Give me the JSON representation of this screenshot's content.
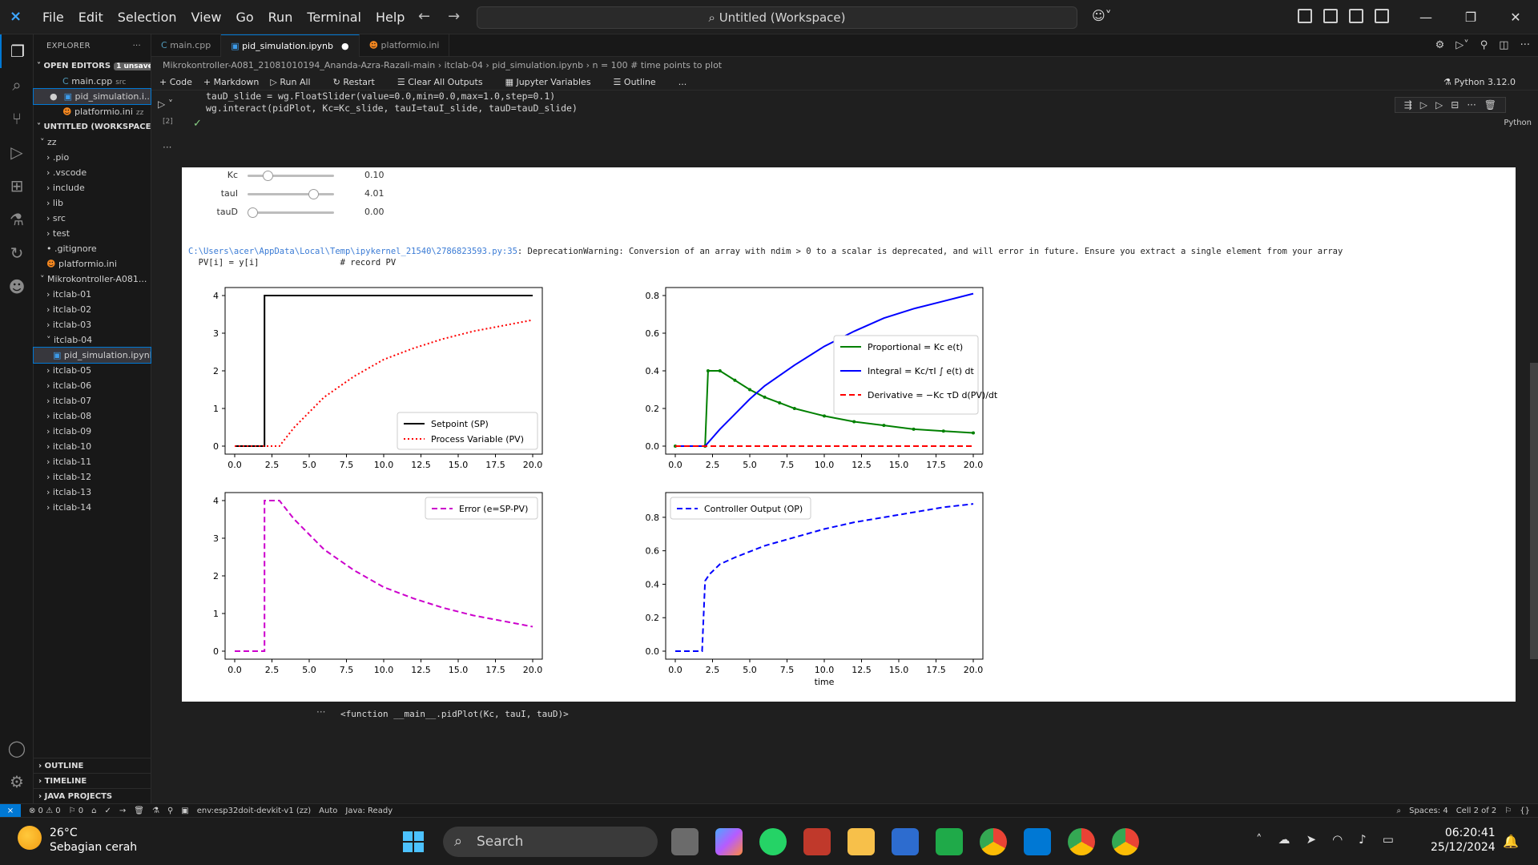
{
  "titlebar": {
    "menu": [
      "File",
      "Edit",
      "Selection",
      "View",
      "Go",
      "Run",
      "Terminal",
      "Help"
    ],
    "search": "Untitled (Workspace)"
  },
  "explorer": {
    "title": "EXPLORER",
    "open_editors": "OPEN EDITORS",
    "unsaved": "1 unsaved",
    "open_files": [
      {
        "name": "main.cpp",
        "hint": "src"
      },
      {
        "name": "pid_simulation.i..."
      },
      {
        "name": "platformio.ini",
        "hint": "zz"
      }
    ],
    "workspace": "UNTITLED (WORKSPACE)",
    "tree": [
      "zz",
      ".pio",
      ".vscode",
      "include",
      "lib",
      "src",
      "test",
      ".gitignore",
      "platformio.ini",
      "Mikrokontroller-A081...",
      "itclab-01",
      "itclab-02",
      "itclab-03",
      "itclab-04",
      "pid_simulation.ipynb",
      "itclab-05",
      "itclab-06",
      "itclab-07",
      "itclab-08",
      "itclab-09",
      "itclab-10",
      "itclab-11",
      "itclab-12",
      "itclab-13",
      "itclab-14"
    ],
    "bottom": [
      "OUTLINE",
      "TIMELINE",
      "JAVA PROJECTS"
    ]
  },
  "tabs": [
    "main.cpp",
    "pid_simulation.ipynb",
    "platformio.ini"
  ],
  "breadcrumb": "Mikrokontroller-A081_21081010194_Ananda-Azra-Razali-main  ›  itclab-04  ›  pid_simulation.ipynb  ›  n = 100 # time points to plot",
  "toolbar": {
    "items": [
      "+ Code",
      "+ Markdown",
      "Run All",
      "Restart",
      "Clear All Outputs",
      "Jupyter Variables",
      "Outline",
      "..."
    ],
    "kernel": "Python 3.12.0"
  },
  "cell": {
    "count": "[2]",
    "lang": "Python",
    "code": "tauD_slide = wg.FloatSlider(value=0.0,min=0.0,max=1.0,step=0.1)\nwg.interact(pidPlot, Kc=Kc_slide, tauI=tauI_slide, tauD=tauD_slide)"
  },
  "sliders": [
    {
      "label": "Kc",
      "value": "0.10",
      "frac": 0.2
    },
    {
      "label": "tauI",
      "value": "4.01",
      "frac": 0.8
    },
    {
      "label": "tauD",
      "value": "0.00",
      "frac": 0.0
    }
  ],
  "warning": {
    "path": "C:\\Users\\acer\\AppData\\Local\\Temp\\ipykernel_21540\\2786823593.py:35",
    "msg": ": DeprecationWarning: Conversion of an array with ndim > 0 to a scalar is deprecated, and will error in future. Ensure you extract a single element from your array",
    "line2": "  PV[i] = y[i]                # record PV"
  },
  "chart_data": [
    {
      "type": "line",
      "xlim": [
        0,
        20
      ],
      "ylim": [
        0,
        4
      ],
      "xticks": [
        "0.0",
        "2.5",
        "5.0",
        "7.5",
        "10.0",
        "12.5",
        "15.0",
        "17.5",
        "20.0"
      ],
      "yticks": [
        "0",
        "1",
        "2",
        "3",
        "4"
      ],
      "legend": "lower-right",
      "series": [
        {
          "name": "Setpoint (SP)",
          "color": "#000000",
          "style": "solid",
          "x": [
            0,
            2,
            2,
            20
          ],
          "y": [
            0,
            0,
            4,
            4
          ]
        },
        {
          "name": "Process Variable (PV)",
          "color": "#ff0000",
          "style": "dotted",
          "x": [
            0,
            3,
            4,
            6,
            8,
            10,
            12,
            14,
            16,
            18,
            20
          ],
          "y": [
            0,
            0,
            0.5,
            1.3,
            1.85,
            2.3,
            2.6,
            2.85,
            3.05,
            3.2,
            3.35
          ]
        }
      ]
    },
    {
      "type": "line",
      "xlim": [
        0,
        20
      ],
      "ylim": [
        0,
        0.8
      ],
      "xticks": [
        "0.0",
        "2.5",
        "5.0",
        "7.5",
        "10.0",
        "12.5",
        "15.0",
        "17.5",
        "20.0"
      ],
      "yticks": [
        "0.0",
        "0.2",
        "0.4",
        "0.6",
        "0.8"
      ],
      "legend": "center-right",
      "series": [
        {
          "name": "Proportional",
          "label": "Proportional = Kᴄ e(t)",
          "color": "#008000",
          "style": "dotline",
          "x": [
            0,
            2,
            2.2,
            3,
            4,
            5,
            6,
            7,
            8,
            10,
            12,
            14,
            16,
            18,
            20
          ],
          "y": [
            0,
            0,
            0.4,
            0.4,
            0.35,
            0.3,
            0.26,
            0.23,
            0.2,
            0.16,
            0.13,
            0.11,
            0.09,
            0.08,
            0.07
          ]
        },
        {
          "name": "Integral",
          "label": "Integral = Kc/τI ∫ e(t) dt",
          "color": "#0000ff",
          "style": "solid",
          "x": [
            0,
            2,
            3,
            4,
            5,
            6,
            8,
            10,
            12,
            14,
            16,
            18,
            20
          ],
          "y": [
            0,
            0,
            0.09,
            0.17,
            0.25,
            0.32,
            0.43,
            0.53,
            0.61,
            0.68,
            0.73,
            0.77,
            0.81
          ]
        },
        {
          "name": "Derivative",
          "label": "Derivative = −Kc τD d(PV)/dt",
          "color": "#ff0000",
          "style": "dashed",
          "x": [
            0,
            20
          ],
          "y": [
            0,
            0
          ]
        }
      ]
    },
    {
      "type": "line",
      "xlim": [
        0,
        20
      ],
      "ylim": [
        0,
        4
      ],
      "xticks": [
        "0.0",
        "2.5",
        "5.0",
        "7.5",
        "10.0",
        "12.5",
        "15.0",
        "17.5",
        "20.0"
      ],
      "yticks": [
        "0",
        "1",
        "2",
        "3",
        "4"
      ],
      "legend": "upper-right",
      "series": [
        {
          "name": "Error (e=SP-PV)",
          "color": "#cc00cc",
          "style": "dashed",
          "x": [
            0,
            2,
            2,
            3,
            4,
            6,
            8,
            10,
            12,
            14,
            16,
            18,
            20
          ],
          "y": [
            0,
            0,
            4,
            4,
            3.5,
            2.7,
            2.15,
            1.7,
            1.4,
            1.15,
            0.95,
            0.8,
            0.65
          ]
        }
      ]
    },
    {
      "type": "line",
      "xlim": [
        0,
        20
      ],
      "ylim": [
        0,
        0.9
      ],
      "xticks": [
        "0.0",
        "2.5",
        "5.0",
        "7.5",
        "10.0",
        "12.5",
        "15.0",
        "17.5",
        "20.0"
      ],
      "yticks": [
        "0.0",
        "0.2",
        "0.4",
        "0.6",
        "0.8"
      ],
      "xlabel": "time",
      "legend": "upper-left",
      "series": [
        {
          "name": "Controller Output (OP)",
          "color": "#0000ff",
          "style": "dashed",
          "x": [
            0,
            1.8,
            2,
            2.3,
            3,
            4,
            6,
            8,
            10,
            12,
            14,
            16,
            18,
            20
          ],
          "y": [
            0,
            0,
            0.42,
            0.46,
            0.52,
            0.56,
            0.63,
            0.68,
            0.73,
            0.77,
            0.8,
            0.83,
            0.86,
            0.88
          ]
        }
      ]
    }
  ],
  "func_output": "<function __main__.pidPlot(Kc, tauI, tauD)>",
  "statusbar": {
    "left": [
      "⊗ 0 ⚠ 0",
      "⚐ 0",
      "env:esp32doit-devkit-v1 (zz)",
      "Auto",
      "Java: Ready"
    ],
    "right": [
      "Spaces: 4",
      "Cell 2 of 2"
    ]
  },
  "taskbar": {
    "temp": "26°C",
    "weather": "Sebagian cerah",
    "search": "Search",
    "time": "06:20:41",
    "date": "25/12/2024"
  }
}
